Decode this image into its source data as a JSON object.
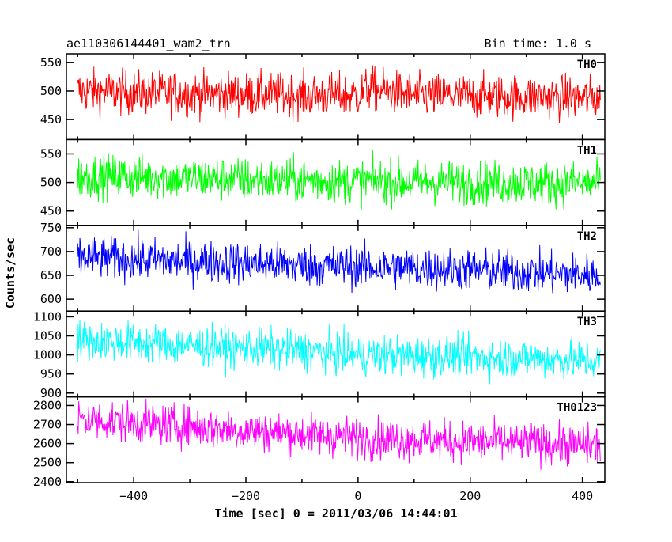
{
  "header": {
    "left_title": "ae110306144401_wam2_trn",
    "right_title": "Bin time: 1.0 s"
  },
  "axes": {
    "xlabel": "Time [sec] 0 = 2011/03/06 14:44:01",
    "ylabel": "Counts/sec"
  },
  "chart_data": {
    "type": "line",
    "x_range": [
      -520,
      440
    ],
    "x_data_range": [
      -500,
      432
    ],
    "x_ticks": [
      -400,
      -200,
      0,
      200,
      400
    ],
    "bin_time_s": 1.0,
    "panels": [
      {
        "name": "TH0",
        "color": "#ff0000",
        "ylim": [
          415,
          565
        ],
        "yticks": [
          450,
          500,
          550
        ],
        "values": [
          {
            "x": -500,
            "y": 500
          },
          {
            "x": -400,
            "y": 497
          },
          {
            "x": -300,
            "y": 495
          },
          {
            "x": -200,
            "y": 494
          },
          {
            "x": -100,
            "y": 492
          },
          {
            "x": 0,
            "y": 493
          },
          {
            "x": 20,
            "y": 505
          },
          {
            "x": 100,
            "y": 492
          },
          {
            "x": 200,
            "y": 491
          },
          {
            "x": 300,
            "y": 490
          },
          {
            "x": 432,
            "y": 487
          }
        ],
        "noise_amplitude": 45
      },
      {
        "name": "TH1",
        "color": "#00ff00",
        "ylim": [
          425,
          575
        ],
        "yticks": [
          450,
          500,
          550
        ],
        "values": [
          {
            "x": -500,
            "y": 512
          },
          {
            "x": -300,
            "y": 508
          },
          {
            "x": -200,
            "y": 505
          },
          {
            "x": 0,
            "y": 502
          },
          {
            "x": 200,
            "y": 500
          },
          {
            "x": 432,
            "y": 498
          }
        ],
        "noise_amplitude": 45
      },
      {
        "name": "TH2",
        "color": "#0000ff",
        "ylim": [
          575,
          755
        ],
        "yticks": [
          600,
          650,
          700,
          750
        ],
        "values": [
          {
            "x": -500,
            "y": 688
          },
          {
            "x": -300,
            "y": 680
          },
          {
            "x": -100,
            "y": 672
          },
          {
            "x": 0,
            "y": 668
          },
          {
            "x": 200,
            "y": 662
          },
          {
            "x": 432,
            "y": 650
          }
        ],
        "noise_amplitude": 52
      },
      {
        "name": "TH3",
        "color": "#00ffff",
        "ylim": [
          890,
          1115
        ],
        "yticks": [
          900,
          950,
          1000,
          1050,
          1100
        ],
        "values": [
          {
            "x": -500,
            "y": 1040
          },
          {
            "x": -300,
            "y": 1025
          },
          {
            "x": -100,
            "y": 1010
          },
          {
            "x": 0,
            "y": 1000
          },
          {
            "x": 200,
            "y": 995
          },
          {
            "x": 432,
            "y": 985
          }
        ],
        "noise_amplitude": 62
      },
      {
        "name": "TH0123",
        "color": "#ff00ff",
        "ylim": [
          2395,
          2845
        ],
        "yticks": [
          2400,
          2500,
          2600,
          2700,
          2800
        ],
        "values": [
          {
            "x": -500,
            "y": 2730
          },
          {
            "x": -300,
            "y": 2690
          },
          {
            "x": -100,
            "y": 2650
          },
          {
            "x": 0,
            "y": 2630
          },
          {
            "x": 200,
            "y": 2610
          },
          {
            "x": 432,
            "y": 2590
          }
        ],
        "noise_amplitude": 125
      }
    ]
  }
}
